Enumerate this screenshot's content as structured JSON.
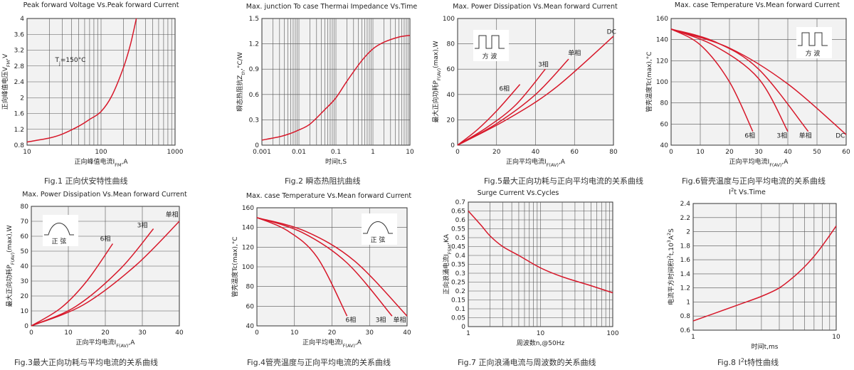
{
  "chart_data": [
    {
      "id": "fig1",
      "type": "line",
      "title": "Peak forward Voltage Vs.Peak forward Current",
      "xlabel": "正向峰值电流I<sub>FM</sub>,A",
      "ylabel": "正向峰值电压V<sub>FM</sub>,V",
      "caption": "Fig.1 正向伏安特性曲线",
      "xscale": "log",
      "xlim": [
        10,
        1000
      ],
      "ylim": [
        0.8,
        4.0
      ],
      "xticks": [
        10,
        100,
        1000
      ],
      "xtick_labels": [
        "10",
        "100",
        "1000"
      ],
      "yticks": [
        0.8,
        1.2,
        1.6,
        2.0,
        2.4,
        2.8,
        3.2,
        3.6,
        4.0
      ],
      "ytick_labels": [
        "0.8",
        "1.2",
        "1.6",
        "2",
        "2.4",
        "2.8",
        "3.2",
        "3.6",
        "4"
      ],
      "annotations": [
        {
          "text": "T<sub>j</sub>=150°C",
          "x": 24,
          "y": 2.9
        }
      ],
      "series": [
        {
          "x": [
            10,
            20,
            30,
            50,
            70,
            100,
            140,
            200,
            250,
            300
          ],
          "y": [
            0.88,
            0.98,
            1.08,
            1.28,
            1.45,
            1.65,
            2.05,
            2.75,
            3.35,
            4.0
          ]
        }
      ]
    },
    {
      "id": "fig2",
      "type": "line",
      "title": "Max. junction To case Thermai Impedance Vs.Time",
      "xlabel": "时间t,S",
      "ylabel": "瞬态热阻抗Z<sub>th</sub>,°C/W",
      "caption": "Fig.2 瞬态热阻抗曲线",
      "xscale": "log",
      "xlim": [
        0.001,
        10
      ],
      "ylim": [
        0,
        1.5
      ],
      "xticks": [
        0.001,
        0.01,
        0.1,
        1,
        10
      ],
      "xtick_labels": [
        "0.001",
        "0.01",
        "0.1",
        "1",
        "10"
      ],
      "yticks": [
        0,
        0.3,
        0.6,
        0.9,
        1.2,
        1.5
      ],
      "ytick_labels": [
        "0",
        "0.3",
        "0.6",
        "0.9",
        "1.2",
        "1.5"
      ],
      "series": [
        {
          "x": [
            0.001,
            0.003,
            0.006,
            0.01,
            0.02,
            0.05,
            0.1,
            0.2,
            0.5,
            1,
            2,
            5,
            10
          ],
          "y": [
            0.06,
            0.1,
            0.14,
            0.18,
            0.25,
            0.42,
            0.56,
            0.76,
            1.0,
            1.14,
            1.22,
            1.28,
            1.3
          ]
        }
      ]
    },
    {
      "id": "fig5",
      "type": "line",
      "title": "Max. Power Dissipation Vs.Mean forward Current",
      "xlabel": "正向平均电流I<sub>F(AV)</sub>,A",
      "ylabel": "最大正向功耗P<sub>F(AV)</sub>(max),W",
      "caption": "Fig.5最大正向功耗与正向平均电流的关系曲线",
      "xlim": [
        0,
        80
      ],
      "ylim": [
        0,
        100
      ],
      "xticks": [
        0,
        20,
        40,
        60,
        80
      ],
      "xtick_labels": [
        "0",
        "20",
        "40",
        "60",
        "80"
      ],
      "yticks": [
        0,
        20,
        40,
        60,
        80,
        100
      ],
      "ytick_labels": [
        "0",
        "20",
        "40",
        "60",
        "80",
        "100"
      ],
      "icon": {
        "kind": "square",
        "label": "方 波"
      },
      "series": [
        {
          "name": "6相",
          "x": [
            0,
            10,
            20,
            32
          ],
          "y": [
            0,
            12,
            27,
            48
          ],
          "label_at": [
            24,
            43
          ]
        },
        {
          "name": "3相",
          "x": [
            0,
            15,
            30,
            45
          ],
          "y": [
            0,
            14,
            32,
            60
          ],
          "label_at": [
            44,
            62
          ]
        },
        {
          "name": "单相",
          "x": [
            0,
            20,
            40,
            57
          ],
          "y": [
            0,
            17,
            40,
            68
          ],
          "label_at": [
            60,
            71
          ]
        },
        {
          "name": "DC",
          "x": [
            0,
            25,
            50,
            80
          ],
          "y": [
            0,
            20,
            45,
            86
          ],
          "label_at": [
            79,
            88
          ]
        }
      ]
    },
    {
      "id": "fig6",
      "type": "line",
      "title": "Max. case Temperature Vs.Mean forward Current",
      "xlabel": "正向平均电流I<sub>F(AV)</sub>,A",
      "ylabel": "管壳温度Tc(max),°C",
      "caption": "Fig.6管壳温度与正向平均电流的关系曲线",
      "xlim": [
        0,
        60
      ],
      "ylim": [
        40,
        160
      ],
      "xticks": [
        0,
        10,
        20,
        30,
        40,
        50,
        60
      ],
      "xtick_labels": [
        "0",
        "10",
        "20",
        "30",
        "40",
        "50",
        "60"
      ],
      "yticks": [
        40,
        60,
        80,
        100,
        120,
        140,
        160
      ],
      "ytick_labels": [
        "40",
        "60",
        "80",
        "100",
        "120",
        "140",
        "160"
      ],
      "icon": {
        "kind": "square",
        "label": "方 波"
      },
      "series": [
        {
          "name": "6相",
          "x": [
            0,
            10,
            20,
            28
          ],
          "y": [
            150,
            135,
            100,
            53
          ],
          "label_at": [
            27,
            47
          ]
        },
        {
          "name": "3相",
          "x": [
            0,
            15,
            30,
            40
          ],
          "y": [
            150,
            134,
            103,
            53
          ],
          "label_at": [
            38,
            47
          ]
        },
        {
          "name": "单相",
          "x": [
            0,
            15,
            30,
            47
          ],
          "y": [
            150,
            138,
            112,
            53
          ],
          "label_at": [
            46,
            47
          ]
        },
        {
          "name": "DC",
          "x": [
            0,
            20,
            40,
            60
          ],
          "y": [
            150,
            132,
            98,
            50
          ],
          "label_at": [
            58,
            47
          ]
        }
      ]
    },
    {
      "id": "fig3",
      "type": "line",
      "title": "Max. Power Dissipation Vs.Mean forward Current",
      "xlabel": "正向平均电流I<sub>F(AV)</sub>,A",
      "ylabel": "最大正向功耗P<sub>F(AV)</sub>(max),W",
      "caption": "Fig.3最大正向功耗与平均电流的关系曲线",
      "xlim": [
        0,
        40
      ],
      "ylim": [
        0,
        80
      ],
      "xticks": [
        0,
        10,
        20,
        30,
        40
      ],
      "xtick_labels": [
        "0",
        "10",
        "20",
        "30",
        "40"
      ],
      "yticks": [
        0,
        10,
        20,
        30,
        40,
        50,
        60,
        70,
        80
      ],
      "ytick_labels": [
        "0",
        "10",
        "20",
        "30",
        "40",
        "50",
        "60",
        "70",
        "80"
      ],
      "icon": {
        "kind": "sine",
        "label": "正 弦"
      },
      "series": [
        {
          "name": "6相",
          "x": [
            0,
            8,
            15,
            22
          ],
          "y": [
            0,
            12,
            30,
            55
          ],
          "label_at": [
            20,
            57
          ]
        },
        {
          "name": "3相",
          "x": [
            0,
            12,
            24,
            33
          ],
          "y": [
            0,
            13,
            38,
            65
          ],
          "label_at": [
            30,
            66
          ]
        },
        {
          "name": "单相",
          "x": [
            0,
            14,
            28,
            40
          ],
          "y": [
            0,
            14,
            40,
            70
          ],
          "label_at": [
            38,
            73
          ]
        }
      ]
    },
    {
      "id": "fig4",
      "type": "line",
      "title": "Max. case Temperature Vs.Mean forward Current",
      "xlabel": "正向平均电流I<sub>F(AV)</sub>,A",
      "ylabel": "管壳温度Tc(max),°C",
      "caption": "Fig.4管壳温度与正向平均电流的关系曲线",
      "xlim": [
        0,
        40
      ],
      "ylim": [
        40,
        160
      ],
      "xticks": [
        0,
        10,
        20,
        30,
        40
      ],
      "xtick_labels": [
        "0",
        "10",
        "20",
        "30",
        "40"
      ],
      "yticks": [
        40,
        60,
        80,
        100,
        120,
        140,
        160
      ],
      "ytick_labels": [
        "40",
        "60",
        "80",
        "100",
        "120",
        "140",
        "160"
      ],
      "icon": {
        "kind": "sine",
        "label": "正 弦"
      },
      "series": [
        {
          "name": "6相",
          "x": [
            0,
            8,
            16,
            24
          ],
          "y": [
            150,
            137,
            110,
            50
          ],
          "label_at": [
            25,
            44
          ]
        },
        {
          "name": "3相",
          "x": [
            0,
            12,
            24,
            36
          ],
          "y": [
            150,
            135,
            104,
            50
          ],
          "label_at": [
            33,
            44
          ]
        },
        {
          "name": "单相",
          "x": [
            0,
            13,
            26,
            40
          ],
          "y": [
            150,
            136,
            106,
            50
          ],
          "label_at": [
            38,
            44
          ]
        }
      ]
    },
    {
      "id": "fig7",
      "type": "line",
      "title": "Surge Current Vs.Cycles",
      "xlabel": "周波数n,@50Hz",
      "ylabel": "正向浪涌电流I<sub>FSM</sub>,KA",
      "caption": "Fig.7 正向浪涌电流与周波数的关系曲线",
      "xscale": "log",
      "xlim": [
        1,
        100
      ],
      "ylim": [
        0,
        0.7
      ],
      "xticks": [
        1,
        10,
        100
      ],
      "xtick_labels": [
        "1",
        "10",
        "100"
      ],
      "yticks": [
        0,
        0.05,
        0.1,
        0.15,
        0.2,
        0.25,
        0.3,
        0.35,
        0.4,
        0.45,
        0.5,
        0.55,
        0.6,
        0.65,
        0.7
      ],
      "ytick_labels": [
        "0",
        "0.05",
        "0.1",
        "0.15",
        "0.2",
        "0.25",
        "0.3",
        "0.35",
        "0.4",
        "0.45",
        "0.5",
        "0.55",
        "0.6",
        "0.65",
        "0.7"
      ],
      "series": [
        {
          "x": [
            1,
            1.5,
            2,
            3,
            5,
            10,
            20,
            50,
            100
          ],
          "y": [
            0.65,
            0.57,
            0.51,
            0.45,
            0.4,
            0.33,
            0.28,
            0.23,
            0.19
          ]
        }
      ]
    },
    {
      "id": "fig8",
      "type": "line",
      "title": "I<sup>2</sup>t Vs.Time",
      "xlabel": "时间t,ms",
      "ylabel": "电流平方时间积I<sup>2</sup>t,10<sup>3</sup>A<sup>2</sup>S",
      "caption": "Fig.8 I<sup>2</sup>t特性曲线",
      "xscale": "log",
      "xlim": [
        1,
        10
      ],
      "ylim": [
        0.6,
        2.4
      ],
      "xticks": [
        1,
        10
      ],
      "xtick_labels": [
        "1",
        "10"
      ],
      "yticks": [
        0.6,
        0.8,
        1.0,
        1.2,
        1.4,
        1.6,
        1.8,
        2.0,
        2.2,
        2.4
      ],
      "ytick_labels": [
        "0.6",
        "0.8",
        "1",
        "1.2",
        "1.4",
        "1.6",
        "1.8",
        "2",
        "2.2",
        "2.4"
      ],
      "series": [
        {
          "x": [
            1,
            2,
            3,
            4,
            5,
            6,
            7,
            8,
            10
          ],
          "y": [
            0.73,
            0.95,
            1.08,
            1.2,
            1.35,
            1.5,
            1.65,
            1.8,
            2.08
          ]
        }
      ]
    }
  ]
}
